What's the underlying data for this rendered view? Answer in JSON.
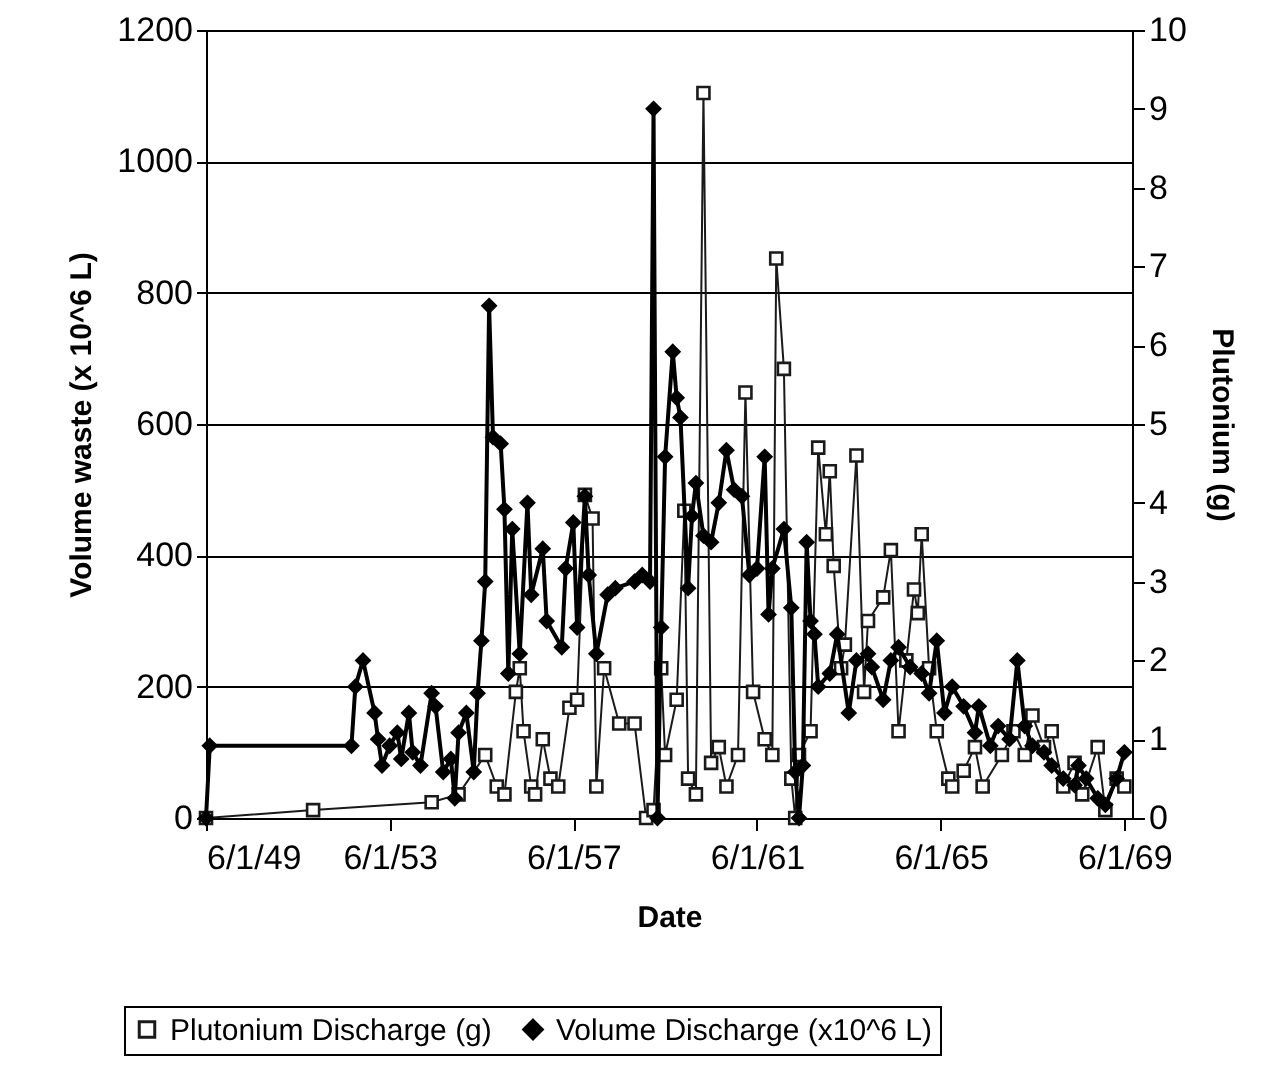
{
  "chart_data": {
    "type": "line",
    "xlabel": "Date",
    "ylabel": "Volume waste (x 10^6 L)",
    "y2label": "Plutonium (g)",
    "xlim": [
      "1949-06-01",
      "1969-08-01"
    ],
    "xticks": [
      {
        "value": "1949-06-01",
        "label": "6/1/49"
      },
      {
        "value": "1953-06-01",
        "label": "6/1/53"
      },
      {
        "value": "1957-06-01",
        "label": "6/1/57"
      },
      {
        "value": "1961-06-01",
        "label": "6/1/61"
      },
      {
        "value": "1965-06-01",
        "label": "6/1/65"
      },
      {
        "value": "1969-06-01",
        "label": "6/1/69"
      }
    ],
    "ylim": [
      0,
      1200
    ],
    "yticks": [
      0,
      200,
      400,
      600,
      800,
      1000,
      1200
    ],
    "y2lim": [
      0,
      10
    ],
    "y2ticks": [
      0,
      1,
      2,
      3,
      4,
      5,
      6,
      7,
      8,
      9,
      10
    ],
    "grid": "y",
    "legend": "bottom",
    "line_style": "solid",
    "series": [
      {
        "name": "Plutonium Discharge (g)",
        "color": "#1a1a1a",
        "axis": "y2",
        "marker": "square",
        "x": [
          "1949-06",
          "1951-10",
          "1954-05",
          "1954-12",
          "1955-07",
          "1955-10",
          "1955-12",
          "1956-03",
          "1956-04",
          "1956-05",
          "1956-07",
          "1956-08",
          "1956-10",
          "1956-12",
          "1957-02",
          "1957-05",
          "1957-07",
          "1957-09",
          "1957-11",
          "1957-12",
          "1958-02",
          "1958-06",
          "1958-10",
          "1959-01",
          "1959-03",
          "1959-05",
          "1959-06",
          "1959-09",
          "1959-11",
          "1959-12",
          "1960-02",
          "1960-04",
          "1960-06",
          "1960-08",
          "1960-10",
          "1961-01",
          "1961-03",
          "1961-05",
          "1961-08",
          "1961-10",
          "1961-11",
          "1962-01",
          "1962-03",
          "1962-04",
          "1962-05",
          "1962-08",
          "1962-10",
          "1962-12",
          "1963-01",
          "1963-02",
          "1963-04",
          "1963-05",
          "1963-08",
          "1963-10",
          "1963-11",
          "1964-03",
          "1964-05",
          "1964-07",
          "1964-09",
          "1964-11",
          "1964-12",
          "1965-01",
          "1965-03",
          "1965-05",
          "1965-08",
          "1965-09",
          "1965-12",
          "1966-03",
          "1966-05",
          "1966-10",
          "1967-01",
          "1967-04",
          "1967-06",
          "1967-09",
          "1967-11",
          "1968-02",
          "1968-05",
          "1968-07",
          "1968-11",
          "1969-01",
          "1969-04",
          "1969-06"
        ],
        "values": [
          0.0,
          0.1,
          0.2,
          0.3,
          0.8,
          0.4,
          0.3,
          1.6,
          1.9,
          1.1,
          0.4,
          0.3,
          1.0,
          0.5,
          0.4,
          1.4,
          1.5,
          4.1,
          3.8,
          0.4,
          1.9,
          1.2,
          1.2,
          0.0,
          0.1,
          1.9,
          0.8,
          1.5,
          3.9,
          0.5,
          0.3,
          9.2,
          0.7,
          0.9,
          0.4,
          0.8,
          5.4,
          1.6,
          1.0,
          0.8,
          7.1,
          5.7,
          0.5,
          0.0,
          0.8,
          1.1,
          4.7,
          3.6,
          4.4,
          3.2,
          1.9,
          2.2,
          4.6,
          1.6,
          2.5,
          2.8,
          3.4,
          1.1,
          2.0,
          2.9,
          2.6,
          3.6,
          1.9,
          1.1,
          0.5,
          0.4,
          0.6,
          0.9,
          0.4,
          0.8,
          1.1,
          0.8,
          1.3,
          0.9,
          1.1,
          0.4,
          0.7,
          0.3,
          0.9,
          0.1,
          0.5,
          0.4
        ]
      },
      {
        "name": "Volume Discharge (x10^6 L)",
        "color": "#000000",
        "axis": "y",
        "marker": "diamond",
        "x": [
          "1949-06",
          "1949-07",
          "1952-08",
          "1952-09",
          "1952-11",
          "1953-02",
          "1953-03",
          "1953-04",
          "1953-06",
          "1953-08",
          "1953-09",
          "1953-11",
          "1953-12",
          "1954-02",
          "1954-05",
          "1954-06",
          "1954-08",
          "1954-10",
          "1954-11",
          "1954-12",
          "1955-02",
          "1955-04",
          "1955-05",
          "1955-06",
          "1955-07",
          "1955-08",
          "1955-09",
          "1955-11",
          "1955-12",
          "1956-01",
          "1956-02",
          "1956-04",
          "1956-06",
          "1956-07",
          "1956-10",
          "1956-11",
          "1957-03",
          "1957-04",
          "1957-06",
          "1957-07",
          "1957-09",
          "1957-10",
          "1957-12",
          "1958-03",
          "1958-05",
          "1958-10",
          "1958-12",
          "1959-02",
          "1959-03",
          "1959-04",
          "1959-05",
          "1959-06",
          "1959-08",
          "1959-09",
          "1959-10",
          "1959-12",
          "1960-01",
          "1960-02",
          "1960-04",
          "1960-06",
          "1960-08",
          "1960-10",
          "1960-12",
          "1961-02",
          "1961-04",
          "1961-06",
          "1961-08",
          "1961-09",
          "1961-10",
          "1962-01",
          "1962-03",
          "1962-04",
          "1962-05",
          "1962-06",
          "1962-07",
          "1962-08",
          "1962-09",
          "1962-10",
          "1963-01",
          "1963-03",
          "1963-06",
          "1963-08",
          "1963-11",
          "1963-12",
          "1964-03",
          "1964-05",
          "1964-07",
          "1964-10",
          "1965-01",
          "1965-03",
          "1965-05",
          "1965-07",
          "1965-09",
          "1965-12",
          "1966-03",
          "1966-04",
          "1966-07",
          "1966-09",
          "1966-12",
          "1967-02",
          "1967-04",
          "1967-06",
          "1967-09",
          "1967-11",
          "1968-02",
          "1968-05",
          "1968-06",
          "1968-08",
          "1968-11",
          "1969-01",
          "1969-04",
          "1969-06"
        ],
        "values": [
          0,
          110,
          110,
          200,
          240,
          160,
          120,
          80,
          110,
          130,
          90,
          160,
          100,
          80,
          190,
          170,
          70,
          90,
          30,
          130,
          160,
          70,
          190,
          270,
          360,
          780,
          580,
          570,
          470,
          220,
          440,
          250,
          480,
          340,
          410,
          300,
          260,
          380,
          450,
          290,
          490,
          370,
          250,
          340,
          350,
          360,
          370,
          360,
          1080,
          0,
          290,
          550,
          710,
          640,
          610,
          350,
          460,
          510,
          430,
          420,
          480,
          560,
          500,
          490,
          370,
          380,
          550,
          310,
          380,
          440,
          320,
          70,
          0,
          80,
          420,
          300,
          280,
          200,
          220,
          280,
          160,
          240,
          250,
          230,
          180,
          240,
          260,
          230,
          220,
          190,
          270,
          160,
          200,
          170,
          130,
          170,
          110,
          140,
          120,
          240,
          140,
          110,
          100,
          80,
          60,
          50,
          80,
          60,
          30,
          20,
          60,
          100
        ]
      }
    ]
  }
}
